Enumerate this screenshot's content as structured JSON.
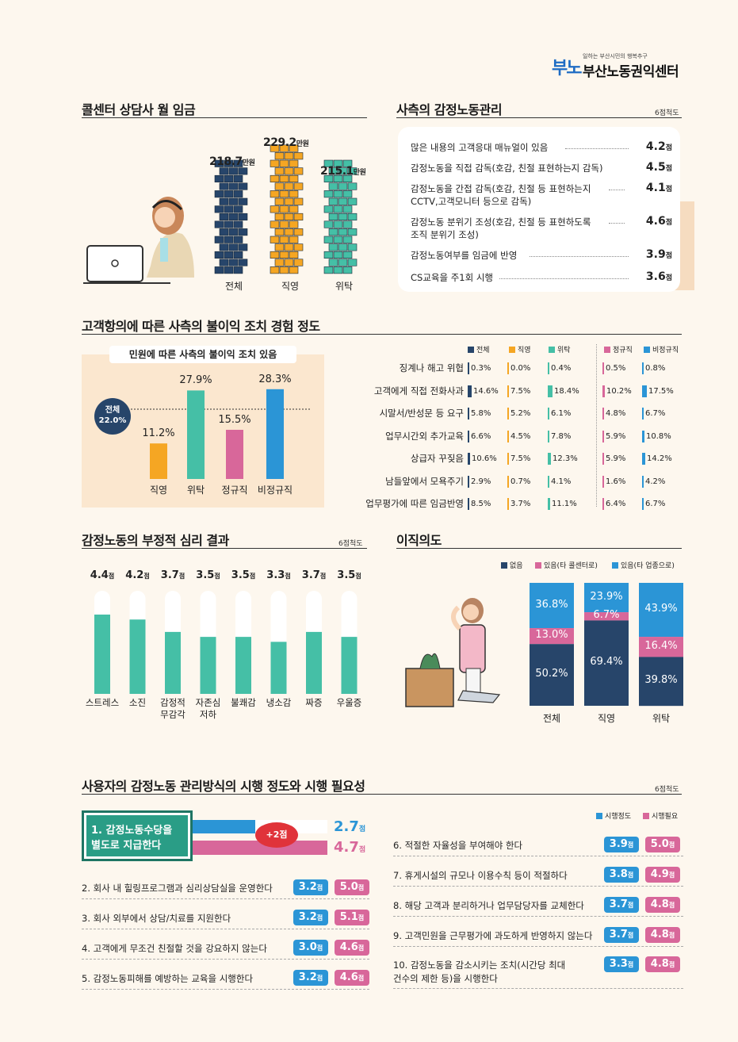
{
  "logo": {
    "mark": "부노",
    "tagline": "일하는 부산시민의 행복추구",
    "name": "부산노동권익센터"
  },
  "wage": {
    "title": "콜센터 상담사 월 임금",
    "unit": "만원",
    "labels": [
      "전체",
      "직영",
      "위탁"
    ],
    "values": [
      "218.7",
      "229.2",
      "215.1"
    ]
  },
  "management": {
    "title": "사측의 감정노동관리",
    "scale": "6점척도",
    "unit": "점",
    "items": [
      {
        "label": "많은 내용의 고객응대 매뉴얼이 있음",
        "value": "4.2"
      },
      {
        "label": "감정노동을 직접 감독(호감, 친절 표현하는지 감독)",
        "value": "4.5"
      },
      {
        "label": "감정노동을 간접 감독(호감, 친절 등 표현하는지",
        "label2": "CCTV,고객모니터 등으로 감독)",
        "value": "4.1"
      },
      {
        "label": "감정노동 분위기 조성(호감, 친절 등 표현하도록",
        "label2": "조직 분위기 조성)",
        "value": "4.6"
      },
      {
        "label": "감정노동여부를 임금에 반영",
        "value": "3.9"
      },
      {
        "label": "CS교육을 주1회 시행",
        "value": "3.6"
      }
    ]
  },
  "disadvantage": {
    "title": "고객항의에 따른 사측의 불이익 조치 경험 정도",
    "panel_title": "민원에 따른 사측의 불이익 조치 있음",
    "overall_label": "전체",
    "overall_value": "22.0%",
    "bars": [
      {
        "label": "직영",
        "value": "11.2%"
      },
      {
        "label": "위탁",
        "value": "27.9%"
      },
      {
        "label": "정규직",
        "value": "15.5%"
      },
      {
        "label": "비정규직",
        "value": "28.3%"
      }
    ],
    "legend": [
      "전체",
      "직영",
      "위탁",
      "정규직",
      "비정규직"
    ],
    "rows": [
      {
        "label": "징계나 해고 위협",
        "values": [
          "0.3%",
          "0.0%",
          "0.4%",
          "0.5%",
          "0.8%"
        ]
      },
      {
        "label": "고객에게 직접 전화사과",
        "values": [
          "14.6%",
          "7.5%",
          "18.4%",
          "10.2%",
          "17.5%"
        ]
      },
      {
        "label": "시말서/반성문 등 요구",
        "values": [
          "5.8%",
          "5.2%",
          "6.1%",
          "4.8%",
          "6.7%"
        ]
      },
      {
        "label": "업무시간외 추가교육",
        "values": [
          "6.6%",
          "4.5%",
          "7.8%",
          "5.9%",
          "10.8%"
        ]
      },
      {
        "label": "상급자 꾸짖음",
        "values": [
          "10.6%",
          "7.5%",
          "12.3%",
          "5.9%",
          "14.2%"
        ]
      },
      {
        "label": "남들앞에서 모욕주기",
        "values": [
          "2.9%",
          "0.7%",
          "4.1%",
          "1.6%",
          "4.2%"
        ]
      },
      {
        "label": "업무평가에 따른 임금반영",
        "values": [
          "8.5%",
          "3.7%",
          "11.1%",
          "6.4%",
          "6.7%"
        ]
      }
    ]
  },
  "psych": {
    "title": "감정노동의 부정적 심리 결과",
    "scale": "6점척도",
    "unit": "점",
    "items": [
      {
        "label": "스트레스",
        "value": "4.4"
      },
      {
        "label": "소진",
        "value": "4.2"
      },
      {
        "label": "감정적",
        "label2": "무감각",
        "value": "3.7"
      },
      {
        "label": "자존심",
        "label2": "저하",
        "value": "3.5"
      },
      {
        "label": "불쾌감",
        "value": "3.5"
      },
      {
        "label": "냉소감",
        "value": "3.3"
      },
      {
        "label": "짜증",
        "value": "3.7"
      },
      {
        "label": "우울증",
        "value": "3.5"
      }
    ]
  },
  "turnover": {
    "title": "이직의도",
    "legend": [
      "없음",
      "있음(타 콜센터로)",
      "있음(타 업종으로)"
    ],
    "columns": [
      {
        "label": "전체",
        "none": "50.2%",
        "call": "13.0%",
        "other": "36.8%"
      },
      {
        "label": "직영",
        "none": "69.4%",
        "call": "6.7%",
        "other": "23.9%"
      },
      {
        "label": "위탁",
        "none": "39.8%",
        "call": "16.4%",
        "other": "43.9%"
      }
    ]
  },
  "methods": {
    "title": "사용자의 감정노동 관리방식의 시행 정도와 시행 필요성",
    "scale": "6점척도",
    "legend": [
      "시행정도",
      "시행필요"
    ],
    "unit": "점",
    "highlight": {
      "line1": "1. 감정노동수당을",
      "line2": "별도로 지급한다",
      "done": "2.7",
      "need": "4.7",
      "diff": "+2점"
    },
    "left": [
      {
        "label": "2. 회사 내 힐링프로그램과 심리상담실을 운영한다",
        "done": "3.2",
        "need": "5.0"
      },
      {
        "label": "3. 회사 외부에서 상담/치료를 지원한다",
        "done": "3.2",
        "need": "5.1"
      },
      {
        "label": "4. 고객에게 무조건 친절할 것을 강요하지 않는다",
        "done": "3.0",
        "need": "4.6"
      },
      {
        "label": "5. 감정노동피해를 예방하는 교육을 시행한다",
        "done": "3.2",
        "need": "4.6"
      }
    ],
    "right": [
      {
        "label": "6. 적절한 자율성을 부여해야 한다",
        "done": "3.9",
        "need": "5.0"
      },
      {
        "label": "7. 휴게시설의 규모나 이용수칙 등이 적절하다",
        "done": "3.8",
        "need": "4.9"
      },
      {
        "label": "8. 해당 고객과 분리하거나 업무담당자를 교체한다",
        "done": "3.7",
        "need": "4.8"
      },
      {
        "label": "9. 고객민원을 근무평가에 과도하게 반영하지 않는다",
        "done": "3.7",
        "need": "4.8"
      },
      {
        "label": "10. 감정노동을 감소시키는 조치(시간당 최대",
        "label2": "건수의 제한 등)을 시행한다",
        "done": "3.3",
        "need": "4.8"
      }
    ]
  },
  "colors": {
    "navy": "#27456a",
    "orange": "#f5a623",
    "teal": "#45bfa6",
    "pink": "#d8679a",
    "blue": "#2b95d6"
  }
}
